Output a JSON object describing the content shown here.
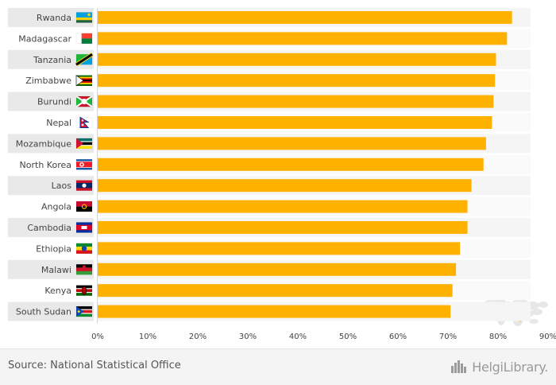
{
  "chart_data": {
    "type": "bar",
    "orientation": "horizontal",
    "title": "",
    "xlabel": "",
    "ylabel": "",
    "xlim": [
      0,
      90
    ],
    "ticks": [
      "0%",
      "10%",
      "20%",
      "30%",
      "40%",
      "50%",
      "60%",
      "70%",
      "80%",
      "90%"
    ],
    "categories": [
      "Rwanda",
      "Madagascar",
      "Tanzania",
      "Zimbabwe",
      "Burundi",
      "Nepal",
      "Mozambique",
      "North Korea",
      "Laos",
      "Angola",
      "Cambodia",
      "Ethiopia",
      "Malawi",
      "Kenya",
      "South Sudan"
    ],
    "values": [
      82.8,
      81.8,
      79.6,
      79.4,
      79.1,
      78.8,
      77.6,
      77.1,
      74.7,
      73.9,
      73.9,
      72.4,
      71.6,
      70.9,
      70.5
    ],
    "bar_color": "#ffb100"
  },
  "flags": [
    {
      "name": "rwanda-flag-icon",
      "colors": [
        "#20603d",
        "#fad201",
        "#00a1de"
      ]
    },
    {
      "name": "madagascar-flag-icon",
      "colors": [
        "#ffffff",
        "#fc3d32",
        "#007e3a"
      ]
    },
    {
      "name": "tanzania-flag-icon",
      "colors": [
        "#1eb53a",
        "#00a3dd",
        "#fcd116",
        "#000000"
      ]
    },
    {
      "name": "zimbabwe-flag-icon",
      "colors": [
        "#006400",
        "#ffd200",
        "#d40000",
        "#000000",
        "#ffffff"
      ]
    },
    {
      "name": "burundi-flag-icon",
      "colors": [
        "#ce1126",
        "#1eb53a",
        "#ffffff"
      ]
    },
    {
      "name": "nepal-flag-icon",
      "colors": [
        "#dc143c",
        "#003893",
        "#ffffff"
      ]
    },
    {
      "name": "mozambique-flag-icon",
      "colors": [
        "#007168",
        "#000000",
        "#fce100",
        "#d21034",
        "#ffffff"
      ]
    },
    {
      "name": "north-korea-flag-icon",
      "colors": [
        "#024fa2",
        "#ed1c27",
        "#ffffff"
      ]
    },
    {
      "name": "laos-flag-icon",
      "colors": [
        "#ce1126",
        "#002868",
        "#ffffff"
      ]
    },
    {
      "name": "angola-flag-icon",
      "colors": [
        "#cc092f",
        "#000000",
        "#ffcb00"
      ]
    },
    {
      "name": "cambodia-flag-icon",
      "colors": [
        "#032ea1",
        "#e00025",
        "#ffffff"
      ]
    },
    {
      "name": "ethiopia-flag-icon",
      "colors": [
        "#078930",
        "#fcdd09",
        "#da121a",
        "#0f47af"
      ]
    },
    {
      "name": "malawi-flag-icon",
      "colors": [
        "#000000",
        "#ce1126",
        "#339e35"
      ]
    },
    {
      "name": "kenya-flag-icon",
      "colors": [
        "#000000",
        "#bb0000",
        "#006600",
        "#ffffff"
      ]
    },
    {
      "name": "south-sudan-flag-icon",
      "colors": [
        "#000000",
        "#da121a",
        "#078930",
        "#0f47af",
        "#fcdd09"
      ]
    }
  ],
  "footer": {
    "source": "Source: National Statistical Office",
    "logo_text": "HelgiLibrary."
  }
}
